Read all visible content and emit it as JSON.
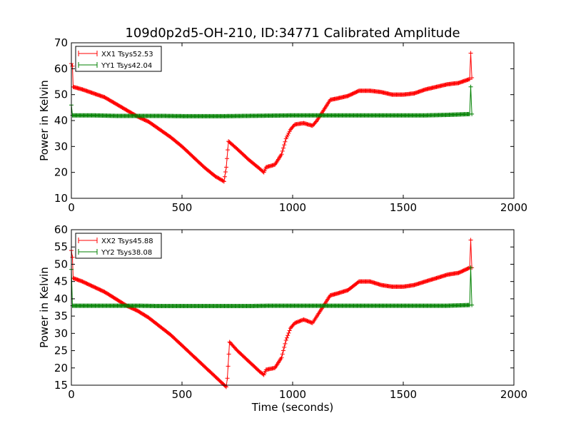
{
  "title": "109d0p2d5-OH-210, ID:34771 Calibrated Amplitude",
  "chart_data": [
    {
      "type": "line",
      "title": "109d0p2d5-OH-210, ID:34771 Calibrated Amplitude",
      "xlabel": "",
      "ylabel": "Power in Kelvin",
      "xlim": [
        0,
        2000
      ],
      "ylim": [
        10,
        70
      ],
      "x_ticks": [
        "0",
        "500",
        "1000",
        "1500",
        "2000"
      ],
      "y_ticks": [
        "10",
        "20",
        "30",
        "40",
        "50",
        "60",
        "70"
      ],
      "grid": false,
      "legend_position": "top-left",
      "series": [
        {
          "name": "XX1 Tsys52.53",
          "color": "#ff0000",
          "marker": "plus",
          "points": [
            [
              0,
              62
            ],
            [
              5,
              61
            ],
            [
              8,
              53
            ],
            [
              50,
              52
            ],
            [
              100,
              50.5
            ],
            [
              150,
              49
            ],
            [
              200,
              46.5
            ],
            [
              250,
              44
            ],
            [
              300,
              41.5
            ],
            [
              350,
              39.5
            ],
            [
              400,
              36.5
            ],
            [
              450,
              33.5
            ],
            [
              500,
              30
            ],
            [
              550,
              26
            ],
            [
              600,
              22
            ],
            [
              650,
              18.5
            ],
            [
              690,
              16.5
            ],
            [
              700,
              22
            ],
            [
              710,
              32
            ],
            [
              750,
              29
            ],
            [
              800,
              25
            ],
            [
              850,
              21.5
            ],
            [
              870,
              20
            ],
            [
              880,
              22
            ],
            [
              920,
              23
            ],
            [
              950,
              27
            ],
            [
              970,
              33
            ],
            [
              990,
              36.5
            ],
            [
              1010,
              38.5
            ],
            [
              1050,
              39
            ],
            [
              1090,
              38
            ],
            [
              1110,
              40
            ],
            [
              1140,
              44
            ],
            [
              1170,
              48
            ],
            [
              1200,
              48.5
            ],
            [
              1250,
              49.5
            ],
            [
              1300,
              51.5
            ],
            [
              1350,
              51.5
            ],
            [
              1400,
              51
            ],
            [
              1450,
              50
            ],
            [
              1500,
              50
            ],
            [
              1550,
              50.5
            ],
            [
              1600,
              52
            ],
            [
              1650,
              53
            ],
            [
              1700,
              54
            ],
            [
              1750,
              54.5
            ],
            [
              1800,
              56
            ],
            [
              1805,
              66
            ],
            [
              1810,
              56.5
            ]
          ]
        },
        {
          "name": "YY1 Tsys42.04",
          "color": "#008000",
          "marker": "plus",
          "points": [
            [
              0,
              46
            ],
            [
              5,
              42
            ],
            [
              100,
              42
            ],
            [
              200,
              41.8
            ],
            [
              300,
              41.8
            ],
            [
              400,
              41.8
            ],
            [
              500,
              41.7
            ],
            [
              600,
              41.7
            ],
            [
              700,
              41.7
            ],
            [
              800,
              41.8
            ],
            [
              900,
              41.9
            ],
            [
              1000,
              42
            ],
            [
              1100,
              42
            ],
            [
              1200,
              42
            ],
            [
              1300,
              42
            ],
            [
              1400,
              42
            ],
            [
              1500,
              42
            ],
            [
              1600,
              42
            ],
            [
              1700,
              42.2
            ],
            [
              1800,
              42.5
            ],
            [
              1805,
              53
            ],
            [
              1810,
              42.5
            ]
          ]
        }
      ]
    },
    {
      "type": "line",
      "title": "",
      "xlabel": "Time (seconds)",
      "ylabel": "Power in Kelvin",
      "xlim": [
        0,
        2000
      ],
      "ylim": [
        15,
        60
      ],
      "x_ticks": [
        "0",
        "500",
        "1000",
        "1500",
        "2000"
      ],
      "y_ticks": [
        "15",
        "20",
        "25",
        "30",
        "35",
        "40",
        "45",
        "50",
        "55",
        "60"
      ],
      "grid": false,
      "legend_position": "top-left",
      "series": [
        {
          "name": "XX2 Tsys45.88",
          "color": "#ff0000",
          "marker": "plus",
          "points": [
            [
              0,
              54
            ],
            [
              5,
              52
            ],
            [
              8,
              46
            ],
            [
              50,
              45
            ],
            [
              100,
              43.5
            ],
            [
              150,
              42
            ],
            [
              200,
              40
            ],
            [
              250,
              38
            ],
            [
              300,
              36.5
            ],
            [
              350,
              34.5
            ],
            [
              400,
              32
            ],
            [
              450,
              29.5
            ],
            [
              500,
              26.5
            ],
            [
              550,
              23.5
            ],
            [
              600,
              20.5
            ],
            [
              650,
              17.5
            ],
            [
              700,
              14.5
            ],
            [
              705,
              17
            ],
            [
              715,
              27.5
            ],
            [
              750,
              25
            ],
            [
              800,
              22
            ],
            [
              850,
              19
            ],
            [
              870,
              18
            ],
            [
              880,
              19.5
            ],
            [
              920,
              20
            ],
            [
              950,
              23
            ],
            [
              970,
              28
            ],
            [
              990,
              31.5
            ],
            [
              1010,
              33
            ],
            [
              1050,
              34
            ],
            [
              1090,
              33
            ],
            [
              1110,
              35
            ],
            [
              1140,
              38
            ],
            [
              1170,
              41
            ],
            [
              1200,
              41.5
            ],
            [
              1250,
              42.5
            ],
            [
              1300,
              45
            ],
            [
              1350,
              45
            ],
            [
              1400,
              44
            ],
            [
              1450,
              43.5
            ],
            [
              1500,
              43.5
            ],
            [
              1550,
              44
            ],
            [
              1600,
              45
            ],
            [
              1650,
              46
            ],
            [
              1700,
              47
            ],
            [
              1750,
              47.5
            ],
            [
              1800,
              49
            ],
            [
              1805,
              57
            ],
            [
              1810,
              49
            ]
          ]
        },
        {
          "name": "YY2 Tsys38.08",
          "color": "#008000",
          "marker": "plus",
          "points": [
            [
              0,
              48.5
            ],
            [
              5,
              38
            ],
            [
              100,
              38
            ],
            [
              200,
              38
            ],
            [
              300,
              38
            ],
            [
              400,
              37.9
            ],
            [
              500,
              37.9
            ],
            [
              600,
              37.9
            ],
            [
              700,
              37.9
            ],
            [
              800,
              37.9
            ],
            [
              900,
              38
            ],
            [
              1000,
              38
            ],
            [
              1100,
              38
            ],
            [
              1200,
              38
            ],
            [
              1300,
              38
            ],
            [
              1400,
              38
            ],
            [
              1500,
              38
            ],
            [
              1600,
              38
            ],
            [
              1700,
              38
            ],
            [
              1800,
              38.2
            ],
            [
              1805,
              49
            ],
            [
              1810,
              38.2
            ]
          ]
        }
      ]
    }
  ]
}
